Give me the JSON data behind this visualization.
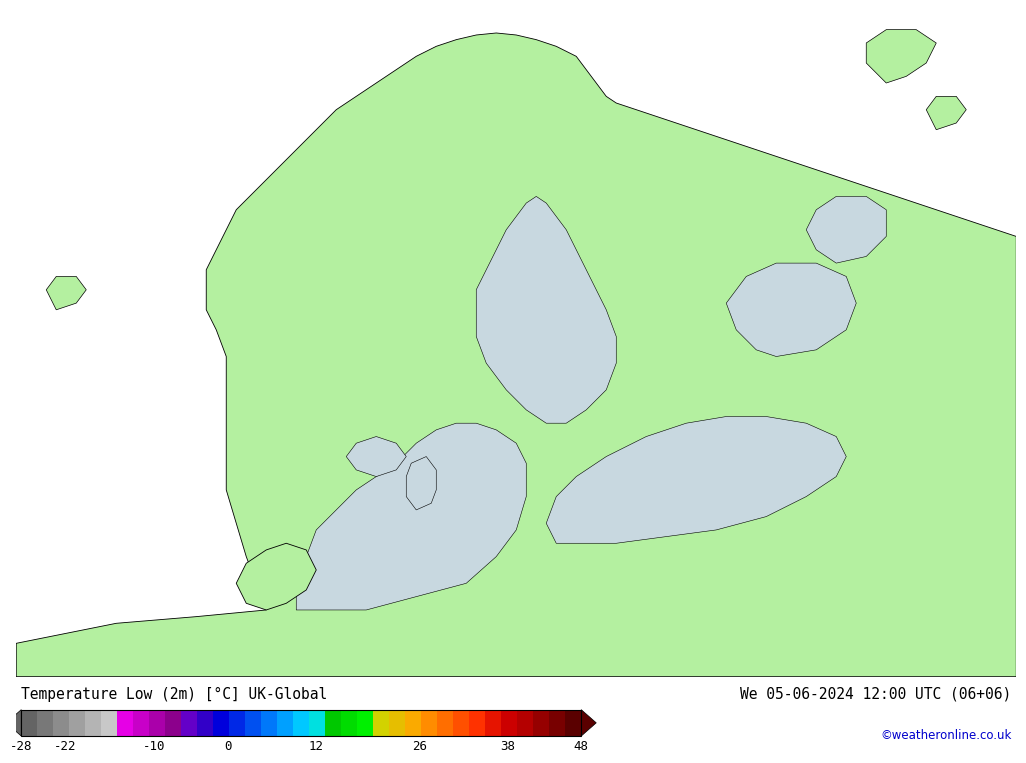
{
  "title_left": "Temperature Low (2m) [°C] UK-Global",
  "title_right": "We 05-06-2024 12:00 UTC (06+06)",
  "copyright": "©weatheronline.co.uk",
  "colorbar_levels": [
    -28,
    -22,
    -10,
    0,
    12,
    26,
    38,
    48
  ],
  "colorbar_colors_extended": [
    "#646464",
    "#787878",
    "#8c8c8c",
    "#a0a0a0",
    "#b4b4b4",
    "#c8c8c8",
    "#e600e6",
    "#c800c8",
    "#aa00aa",
    "#8c008c",
    "#6400c8",
    "#3200c8",
    "#0000dc",
    "#0028e6",
    "#0050f0",
    "#0078fa",
    "#00a0ff",
    "#00c8ff",
    "#00e0e0",
    "#00c800",
    "#00dc00",
    "#00f000",
    "#d2d200",
    "#e6be00",
    "#faaa00",
    "#ff8c00",
    "#ff6e00",
    "#ff5000",
    "#ff3200",
    "#e61400",
    "#cc0000",
    "#b40000",
    "#960000",
    "#780000",
    "#5a0000"
  ],
  "temp_min": -28,
  "temp_max": 48,
  "map_sea_color": "#c8d8e0",
  "map_sea_left_color": "#c8d0d8",
  "land_green": "#b4f0a0",
  "border_color": "#000000",
  "bottom_bar_bg": "#dcdcdc",
  "text_color": "#000000",
  "copyright_color": "#0000cc",
  "fig_bg": "#ffffff"
}
